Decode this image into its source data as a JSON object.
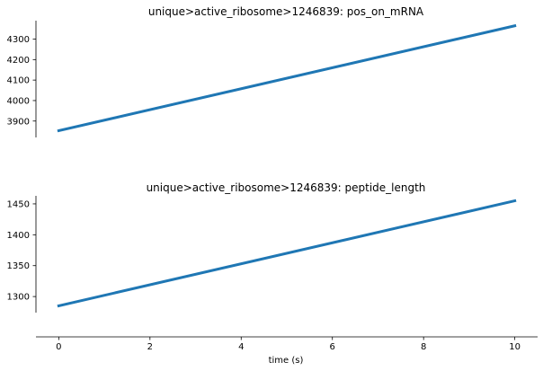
{
  "chart_data": [
    {
      "type": "line",
      "title": "unique>active_ribosome>1246839: pos_on_mRNA",
      "x": [
        0,
        10
      ],
      "series": [
        {
          "values": [
            3853,
            4365
          ],
          "color": "#1f77b4"
        }
      ],
      "ylim": [
        3820,
        4390
      ],
      "yticks": [
        3900,
        4000,
        4100,
        4200,
        4300
      ],
      "ytick_labels": [
        "3900",
        "4000",
        "4100",
        "4200",
        "4300"
      ],
      "xlim": [
        -0.5,
        10.5
      ],
      "grid": false
    },
    {
      "type": "line",
      "title": "unique>active_ribosome>1246839: peptide_length",
      "x": [
        0,
        10
      ],
      "series": [
        {
          "values": [
            1285,
            1455
          ],
          "color": "#1f77b4"
        }
      ],
      "ylim": [
        1274,
        1463
      ],
      "yticks": [
        1300,
        1350,
        1400,
        1450
      ],
      "ytick_labels": [
        "1300",
        "1350",
        "1400",
        "1450"
      ],
      "xlim": [
        -0.5,
        10.5
      ],
      "xticks": [
        0,
        2,
        4,
        6,
        8,
        10
      ],
      "xtick_labels": [
        "0",
        "2",
        "4",
        "6",
        "8",
        "10"
      ],
      "xlabel": "time (s)",
      "grid": false
    }
  ]
}
